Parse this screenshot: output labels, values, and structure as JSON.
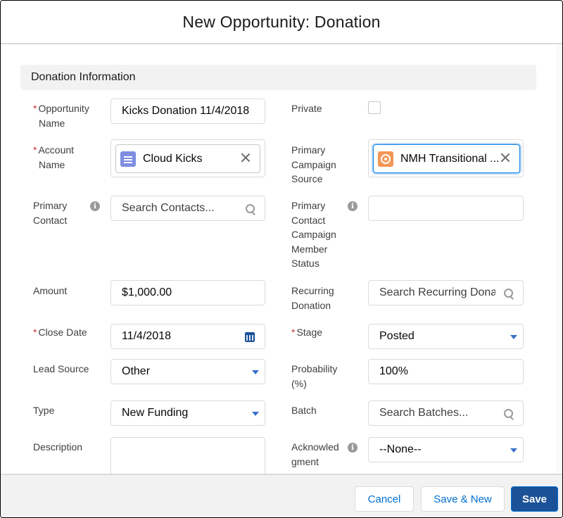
{
  "modal": {
    "title": "New Opportunity: Donation"
  },
  "section": {
    "title": "Donation Information"
  },
  "fields": {
    "opportunity_name": {
      "label_line1": "Opportunity",
      "label_line2": "Name",
      "value": "Kicks Donation 11/4/2018",
      "required": "*"
    },
    "private": {
      "label": "Private",
      "checked": false
    },
    "account_name": {
      "label_line1": "Account",
      "label_line2": "Name",
      "value": "Cloud Kicks",
      "required": "*",
      "icon": "account-icon"
    },
    "primary_campaign_source": {
      "label_line1": "Primary",
      "label_line2": "Campaign",
      "label_line3": "Source",
      "value": "NMH Transitional ...",
      "icon": "campaign-icon"
    },
    "primary_contact": {
      "label_line1": "Primary",
      "label_line2": "Contact",
      "placeholder": "Search Contacts...",
      "info_icon": "i"
    },
    "primary_contact_campaign_member_status": {
      "label_line1": "Primary",
      "label_line2": "Contact",
      "label_line3": "Campaign",
      "label_line4": "Member",
      "label_line5": "Status",
      "value": "",
      "info_icon": "i"
    },
    "amount": {
      "label": "Amount",
      "value": "$1,000.00"
    },
    "recurring_donation": {
      "label_line1": "Recurring",
      "label_line2": "Donation",
      "placeholder": "Search Recurring Donat"
    },
    "close_date": {
      "label": "Close Date",
      "value": "11/4/2018",
      "required": "*"
    },
    "stage": {
      "label": "Stage",
      "value": "Posted",
      "required": "*"
    },
    "lead_source": {
      "label": "Lead Source",
      "value": "Other"
    },
    "probability": {
      "label_line1": "Probability",
      "label_line2": "(%)",
      "value": "100%"
    },
    "type": {
      "label": "Type",
      "value": "New Funding"
    },
    "batch": {
      "label": "Batch",
      "placeholder": "Search Batches..."
    },
    "description": {
      "label": "Description",
      "value": ""
    },
    "acknowledgment": {
      "label_line1": "Acknowled",
      "label_line2": "gment",
      "value": "--None--",
      "info_icon": "i"
    }
  },
  "footer": {
    "cancel_label": "Cancel",
    "save_new_label": "Save & New",
    "save_label": "Save"
  },
  "colors": {
    "brand": "#1b5297",
    "link": "#0070d2",
    "required": "#c23934",
    "account_icon": "#7f8de1",
    "campaign_icon": "#f49756"
  }
}
